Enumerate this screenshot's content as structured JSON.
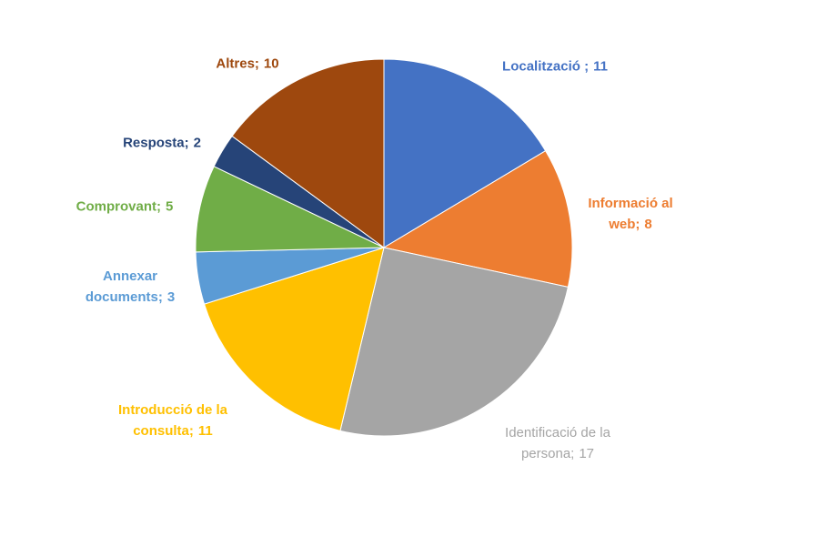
{
  "chart_data": {
    "type": "pie",
    "categories": [
      "Localització  ;",
      "Informació al web;",
      "Identificació de la persona;",
      "Introducció de la consulta;",
      "Annexar documents;",
      "Comprovant;",
      "Resposta;",
      "Altres;"
    ],
    "values": [
      11,
      8,
      17,
      11,
      3,
      5,
      2,
      10
    ],
    "colors": [
      "#4472c4",
      "#ed7d31",
      "#a5a5a5",
      "#ffc000",
      "#5b9bd5",
      "#70ad47",
      "#264478",
      "#9e480e"
    ]
  }
}
